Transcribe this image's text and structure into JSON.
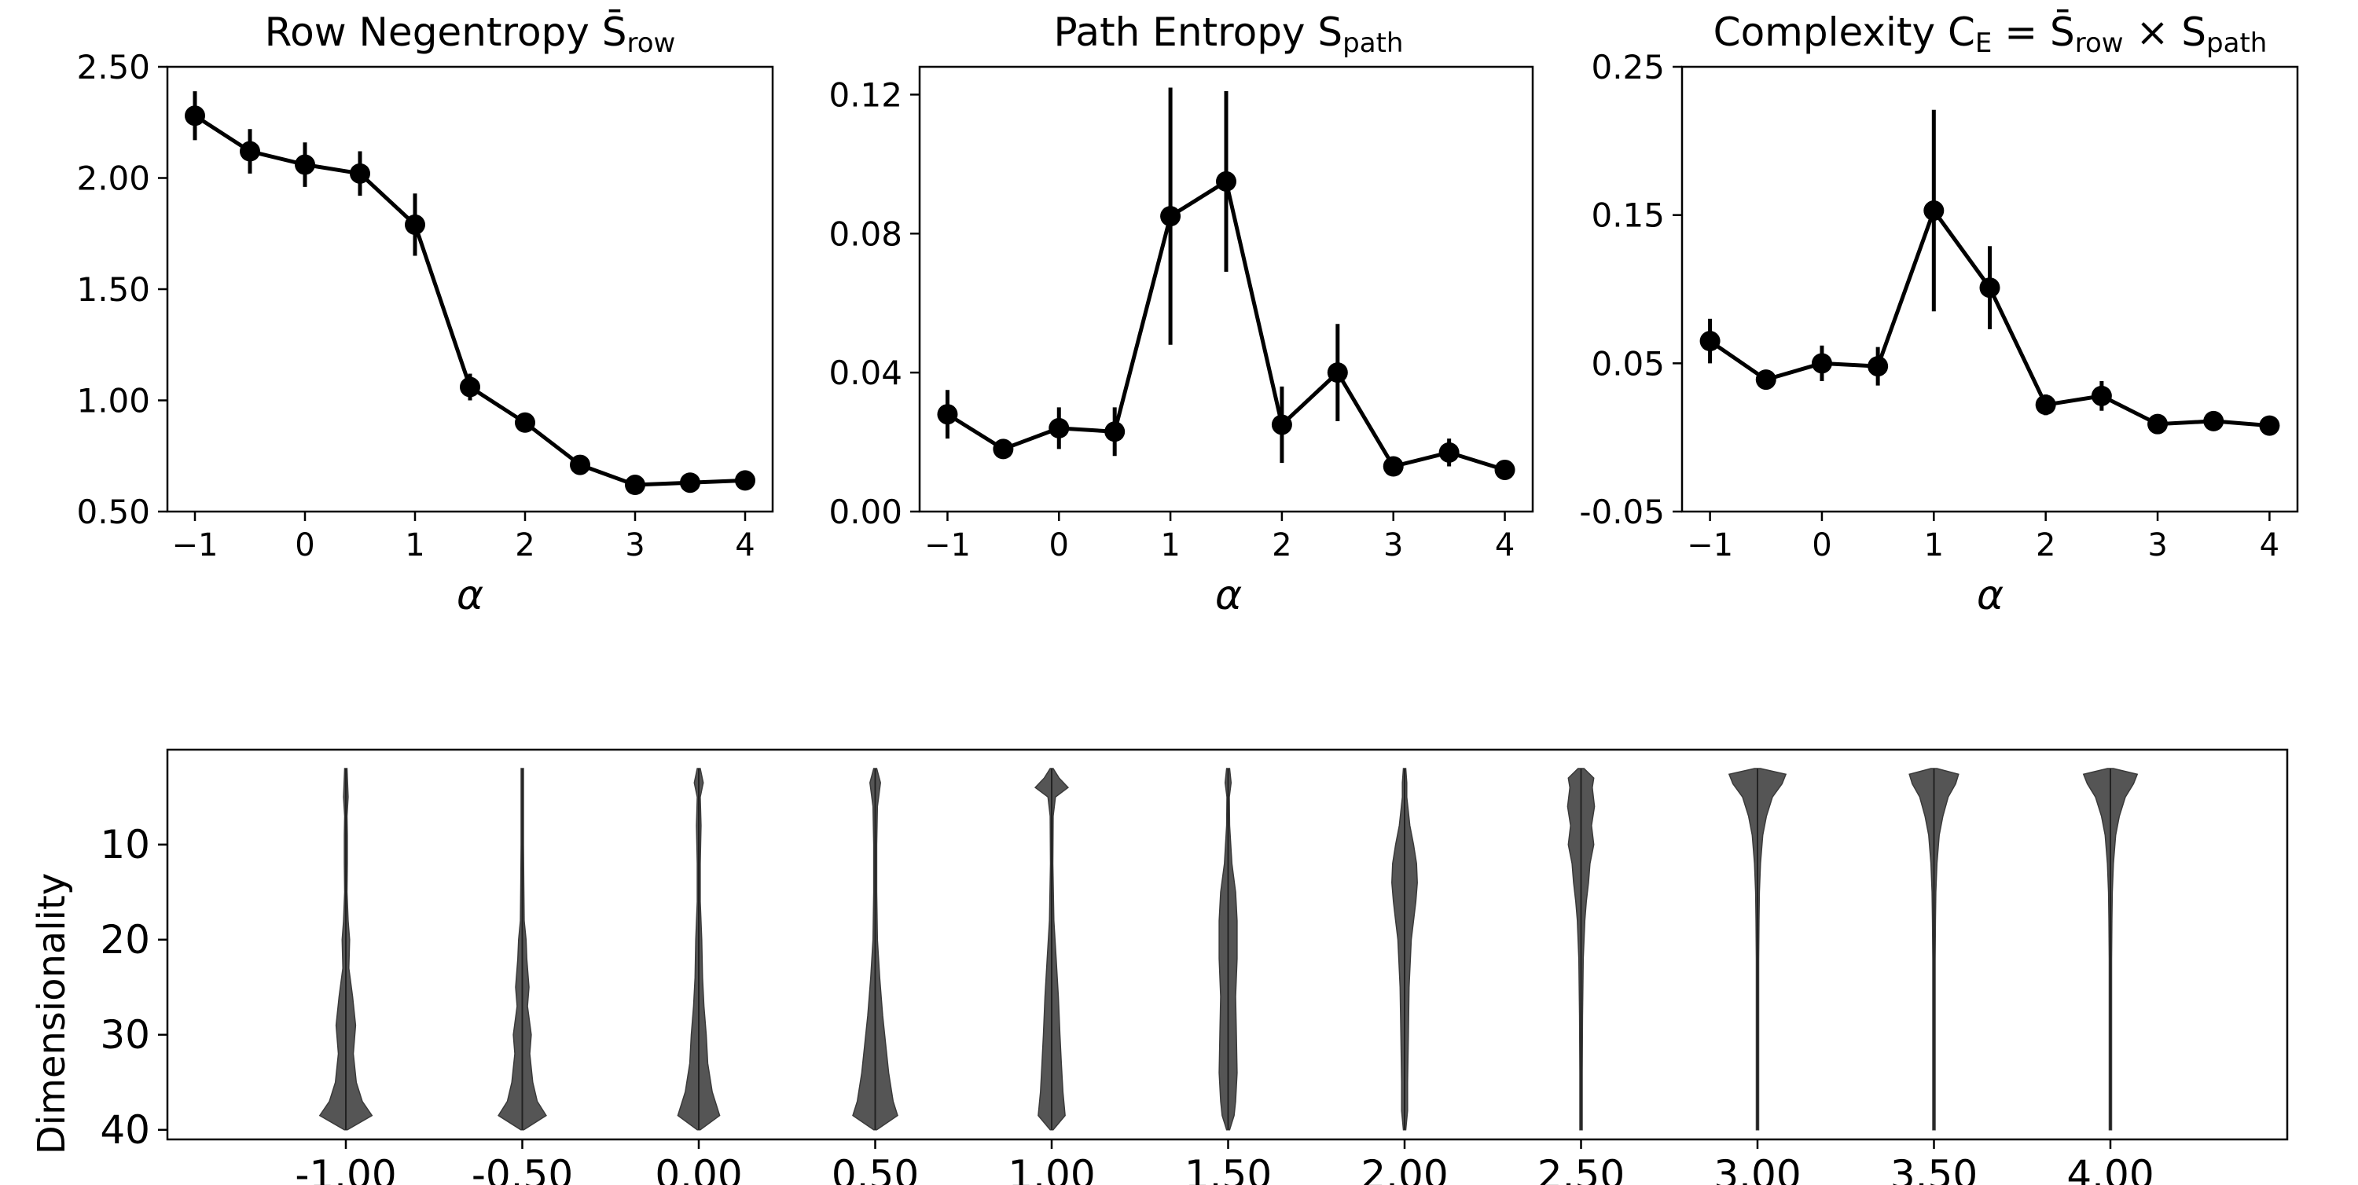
{
  "chart_data": [
    {
      "type": "line",
      "title": "Row Negentropy S̄",
      "title_sub": "row",
      "xlabel": "α",
      "ylabel": "",
      "x": [
        -1,
        -0.5,
        0,
        0.5,
        1,
        1.5,
        2,
        2.5,
        3,
        3.5,
        4
      ],
      "values": [
        2.28,
        2.12,
        2.06,
        2.02,
        1.79,
        1.06,
        0.9,
        0.71,
        0.62,
        0.63,
        0.64
      ],
      "errors": [
        0.11,
        0.1,
        0.1,
        0.1,
        0.14,
        0.06,
        0.03,
        0.03,
        0.02,
        0.02,
        0.02
      ],
      "xlim": [
        -1.25,
        4.25
      ],
      "ylim": [
        0.5,
        2.5
      ],
      "xticks": [
        -1,
        0,
        1,
        2,
        3,
        4
      ],
      "xtick_labels": [
        "−1",
        "0",
        "1",
        "2",
        "3",
        "4"
      ],
      "yticks": [
        0.5,
        1.0,
        1.5,
        2.0,
        2.5
      ],
      "ytick_labels": [
        "0.50",
        "1.00",
        "1.50",
        "2.00",
        "2.50"
      ]
    },
    {
      "type": "line",
      "title": "Path Entropy S",
      "title_sub": "path",
      "xlabel": "α",
      "ylabel": "",
      "x": [
        -1,
        -0.5,
        0,
        0.5,
        1,
        1.5,
        2,
        2.5,
        3,
        3.5,
        4
      ],
      "values": [
        0.028,
        0.018,
        0.024,
        0.023,
        0.085,
        0.095,
        0.025,
        0.04,
        0.013,
        0.017,
        0.012
      ],
      "errors": [
        0.007,
        0.002,
        0.006,
        0.007,
        0.037,
        0.026,
        0.011,
        0.014,
        0.002,
        0.004,
        0.002
      ],
      "xlim": [
        -1.25,
        4.25
      ],
      "ylim": [
        0.0,
        0.128
      ],
      "xticks": [
        -1,
        0,
        1,
        2,
        3,
        4
      ],
      "xtick_labels": [
        "−1",
        "0",
        "1",
        "2",
        "3",
        "4"
      ],
      "yticks": [
        0.0,
        0.04,
        0.08,
        0.12
      ],
      "ytick_labels": [
        "0.00",
        "0.04",
        "0.08",
        "0.12"
      ]
    },
    {
      "type": "line",
      "title": "Complexity C",
      "title_sub_E": "E",
      "title_eq": " = S̄",
      "title_sub_row": "row",
      "title_times": " × S",
      "title_sub_path": "path",
      "xlabel": "α",
      "ylabel": "",
      "x": [
        -1,
        -0.5,
        0,
        0.5,
        1,
        1.5,
        2,
        2.5,
        3,
        3.5,
        4
      ],
      "values": [
        0.065,
        0.039,
        0.05,
        0.048,
        0.153,
        0.101,
        0.022,
        0.028,
        0.009,
        0.011,
        0.008
      ],
      "errors": [
        0.015,
        0.003,
        0.012,
        0.013,
        0.068,
        0.028,
        0.007,
        0.01,
        0.002,
        0.002,
        0.002
      ],
      "xlim": [
        -1.25,
        4.25
      ],
      "ylim": [
        -0.05,
        0.25
      ],
      "xticks": [
        -1,
        0,
        1,
        2,
        3,
        4
      ],
      "xtick_labels": [
        "−1",
        "0",
        "1",
        "2",
        "3",
        "4"
      ],
      "yticks": [
        -0.05,
        0.05,
        0.15,
        0.25
      ],
      "ytick_labels": [
        "-0.05",
        "0.05",
        "0.15",
        "0.25"
      ]
    },
    {
      "type": "violin",
      "title": "",
      "xlabel": "",
      "ylabel": "Dimensionality",
      "categories": [
        "-1.00",
        "-0.50",
        "0.00",
        "0.50",
        "1.00",
        "1.50",
        "2.00",
        "2.50",
        "3.00",
        "3.50",
        "4.00"
      ],
      "ylim": [
        42,
        0
      ],
      "yticks": [
        10,
        20,
        30,
        40
      ],
      "ytick_labels": [
        "10",
        "20",
        "30",
        "40"
      ],
      "y_range": [
        2,
        40
      ],
      "distributions": [
        {
          "y": [
            2,
            5,
            7,
            9,
            12,
            15,
            18,
            20,
            23,
            26,
            29,
            32,
            35,
            37,
            38.5,
            40
          ],
          "w": [
            0.01,
            0.03,
            0.015,
            0.02,
            0.02,
            0.015,
            0.03,
            0.05,
            0.04,
            0.09,
            0.13,
            0.1,
            0.14,
            0.22,
            0.35,
            0.02
          ]
        },
        {
          "y": [
            2,
            6,
            10,
            14,
            18,
            20,
            22,
            25,
            27,
            30,
            32,
            35,
            37,
            38.5,
            40
          ],
          "w": [
            0.01,
            0.015,
            0.01,
            0.02,
            0.025,
            0.05,
            0.06,
            0.09,
            0.07,
            0.12,
            0.1,
            0.14,
            0.2,
            0.32,
            0.02
          ]
        },
        {
          "y": [
            2,
            3.5,
            5,
            8,
            12,
            16,
            20,
            24,
            27,
            30,
            33,
            36,
            38.5,
            40
          ],
          "w": [
            0.02,
            0.06,
            0.02,
            0.03,
            0.02,
            0.02,
            0.04,
            0.05,
            0.07,
            0.1,
            0.12,
            0.18,
            0.28,
            0.02
          ]
        },
        {
          "y": [
            2,
            3.5,
            6,
            10,
            15,
            20,
            24,
            28,
            31,
            34,
            37,
            38.5,
            40
          ],
          "w": [
            0.02,
            0.07,
            0.03,
            0.02,
            0.02,
            0.03,
            0.06,
            0.1,
            0.14,
            0.18,
            0.24,
            0.3,
            0.02
          ]
        },
        {
          "y": [
            2,
            3,
            4,
            5,
            7,
            12,
            18,
            22,
            26,
            30,
            33,
            36,
            38.5,
            40
          ],
          "w": [
            0.02,
            0.1,
            0.22,
            0.05,
            0.02,
            0.015,
            0.03,
            0.06,
            0.09,
            0.11,
            0.13,
            0.15,
            0.18,
            0.02
          ]
        },
        {
          "y": [
            2,
            3.5,
            5,
            8,
            12,
            15,
            18,
            22,
            26,
            30,
            34,
            37,
            38.5,
            40
          ],
          "w": [
            0.02,
            0.04,
            0.015,
            0.02,
            0.05,
            0.1,
            0.12,
            0.12,
            0.1,
            0.11,
            0.12,
            0.1,
            0.08,
            0.02
          ]
        },
        {
          "y": [
            2,
            3.5,
            5,
            8,
            10,
            12,
            14,
            16,
            18,
            20,
            25,
            30,
            35,
            38,
            40
          ],
          "w": [
            0.01,
            0.03,
            0.03,
            0.07,
            0.12,
            0.16,
            0.17,
            0.15,
            0.12,
            0.09,
            0.06,
            0.05,
            0.04,
            0.04,
            0.01
          ]
        },
        {
          "y": [
            2,
            3,
            4,
            6,
            8,
            10,
            12,
            14,
            16,
            18,
            22,
            28,
            34,
            38,
            40
          ],
          "w": [
            0.04,
            0.17,
            0.15,
            0.18,
            0.14,
            0.17,
            0.12,
            0.1,
            0.07,
            0.05,
            0.03,
            0.02,
            0.015,
            0.01,
            0.01
          ]
        },
        {
          "y": [
            2,
            2.6,
            3.6,
            5,
            7,
            9,
            12,
            15,
            18,
            22,
            26,
            30,
            35,
            40
          ],
          "w": [
            0.04,
            0.38,
            0.33,
            0.2,
            0.12,
            0.07,
            0.04,
            0.025,
            0.02,
            0.015,
            0.01,
            0.01,
            0.008,
            0.005
          ]
        },
        {
          "y": [
            2,
            2.6,
            3.6,
            5,
            7,
            9,
            12,
            15,
            18,
            22,
            26,
            30,
            35,
            40
          ],
          "w": [
            0.04,
            0.33,
            0.29,
            0.19,
            0.12,
            0.07,
            0.04,
            0.025,
            0.02,
            0.015,
            0.01,
            0.01,
            0.008,
            0.005
          ]
        },
        {
          "y": [
            2,
            2.6,
            3.6,
            5,
            7,
            9,
            12,
            15,
            18,
            22,
            26,
            30,
            35,
            40
          ],
          "w": [
            0.04,
            0.36,
            0.31,
            0.2,
            0.12,
            0.07,
            0.04,
            0.025,
            0.02,
            0.015,
            0.01,
            0.01,
            0.008,
            0.005
          ]
        }
      ]
    }
  ]
}
